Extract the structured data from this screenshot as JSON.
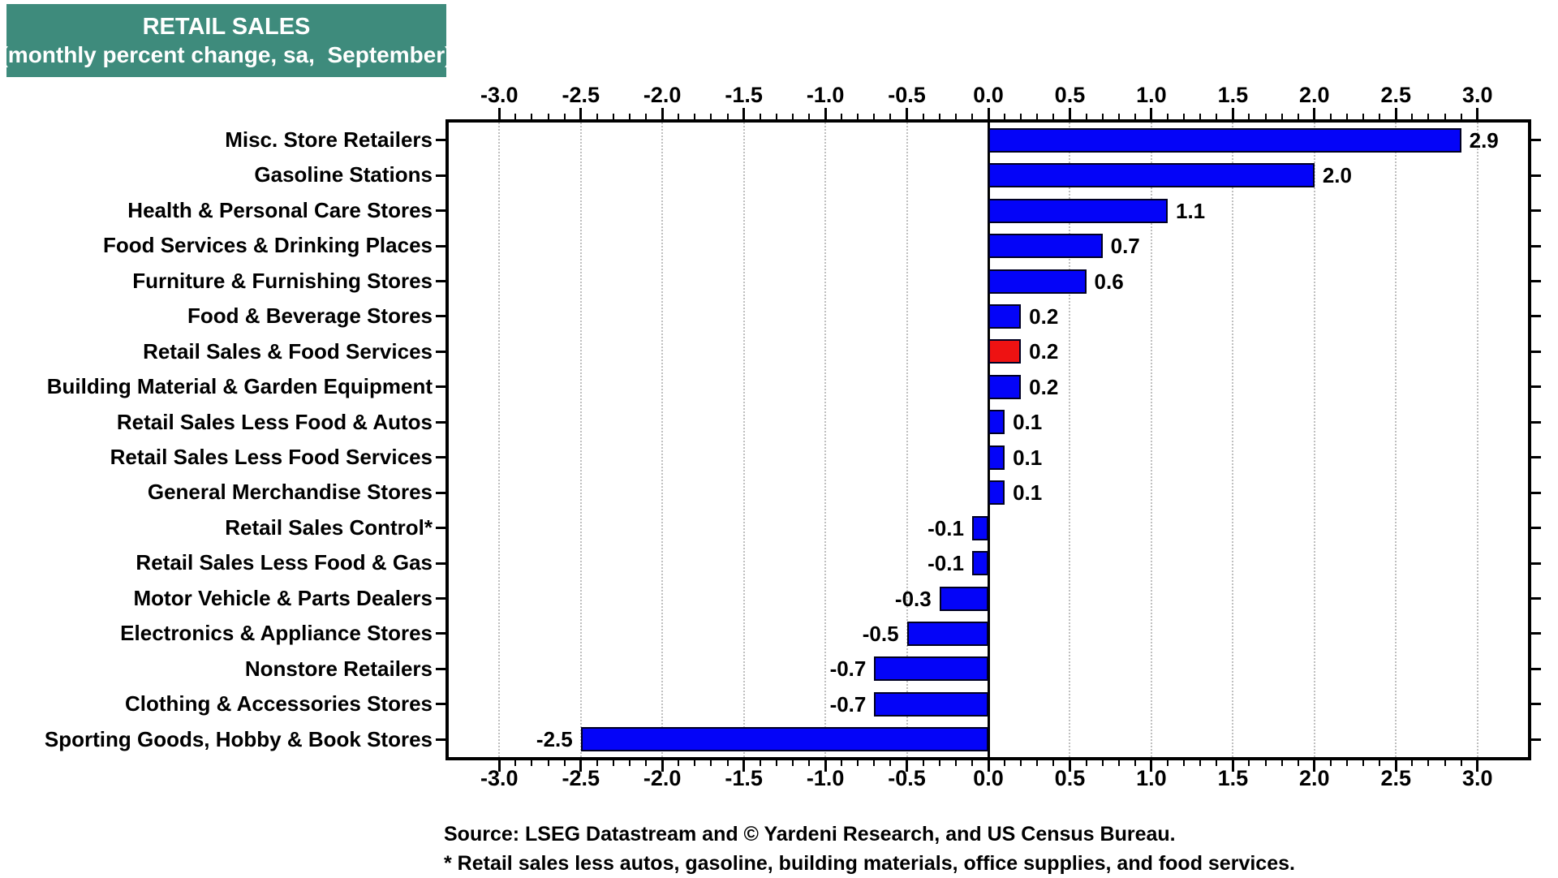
{
  "header": {
    "title": "RETAIL SALES",
    "subtitle": "(monthly percent change, sa,  September)",
    "bg_color": "#3e8b7c",
    "text_color": "#ffffff"
  },
  "chart_data": {
    "type": "bar",
    "orientation": "horizontal",
    "title": "RETAIL SALES (monthly percent change, sa, September)",
    "xlabel": "",
    "ylabel": "",
    "xlim": [
      -3.31,
      3.31
    ],
    "x_tick_labels": [
      "-3.0",
      "-2.5",
      "-2.0",
      "-1.5",
      "-1.0",
      "-0.5",
      "0.0",
      "0.5",
      "1.0",
      "1.5",
      "2.0",
      "2.5",
      "3.0"
    ],
    "x_minor_tick_step": 0.1,
    "grid": "vertical dotted gridlines at each 0.5 step, solid black line at zero",
    "axes": "tick marks and labels on both top and bottom edges, category ticks on left and right edges",
    "bar_color": "#0404f8",
    "highlight_color": "#ee1212",
    "grid_color": "#bfbfbf",
    "highlight_index": 6,
    "categories": [
      "Misc. Store Retailers",
      "Gasoline Stations",
      "Health & Personal Care Stores",
      "Food Services & Drinking Places",
      "Furniture & Furnishing Stores",
      "Food & Beverage Stores",
      "Retail Sales & Food Services",
      "Building Material & Garden Equipment",
      "Retail Sales Less Food & Autos",
      "Retail Sales Less Food Services",
      "General Merchandise Stores",
      "Retail Sales Control*",
      "Retail Sales Less Food & Gas",
      "Motor Vehicle & Parts Dealers",
      "Electronics & Appliance Stores",
      "Nonstore Retailers",
      "Clothing & Accessories Stores",
      "Sporting Goods, Hobby & Book Stores"
    ],
    "values": [
      2.9,
      2.0,
      1.1,
      0.7,
      0.6,
      0.2,
      0.2,
      0.2,
      0.1,
      0.1,
      0.1,
      -0.1,
      -0.1,
      -0.3,
      -0.5,
      -0.7,
      -0.7,
      -2.5
    ],
    "value_labels": [
      "2.9",
      "2.0",
      "1.1",
      "0.7",
      "0.6",
      "0.2",
      "0.2",
      "0.2",
      "0.1",
      "0.1",
      "0.1",
      "-0.1",
      "-0.1",
      "-0.3",
      "-0.5",
      "-0.7",
      "-0.7",
      "-2.5"
    ]
  },
  "footer": {
    "source_line": "Source: LSEG Datastream and © Yardeni Research, and US Census Bureau.",
    "note_line": "* Retail sales less autos, gasoline, building materials, office supplies, and food services."
  }
}
